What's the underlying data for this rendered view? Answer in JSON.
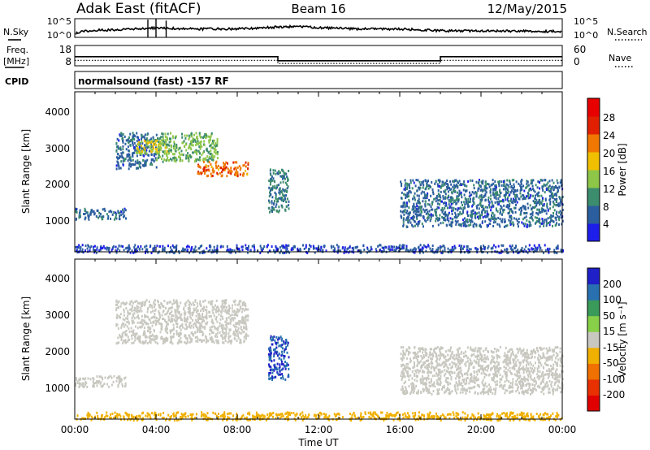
{
  "header": {
    "station": "Adak East (fitACF)",
    "beam": "Beam 16",
    "date": "12/May/2015"
  },
  "left_labels": {
    "nsky": "N.Sky",
    "freq": "Freq.",
    "freq_unit": "[MHz]",
    "cpid": "CPID"
  },
  "right_labels": {
    "nsearch": "N.Search",
    "nave": "Nave"
  },
  "program": "normalsound (fast) -157 RF",
  "time_axis": {
    "label": "Time UT",
    "ticks": [
      "00:00",
      "04:00",
      "08:00",
      "12:00",
      "16:00",
      "20:00",
      "00:00"
    ]
  },
  "range_axis": {
    "label": "Slant Range [km]",
    "ticks": [
      "1000",
      "2000",
      "3000",
      "4000"
    ]
  },
  "power_scale": {
    "label": "Power [dB]",
    "ticks": [
      "4",
      "8",
      "12",
      "16",
      "20",
      "24",
      "28"
    ],
    "colors": [
      "#1e1eea",
      "#2b5e9e",
      "#3c8c6e",
      "#8ec648",
      "#f0c000",
      "#f07800",
      "#e02000",
      "#e80000"
    ]
  },
  "velocity_scale": {
    "label": "Velocity [m s⁻¹]",
    "ticks": [
      "200",
      "100",
      "50",
      "15",
      "-15",
      "-50",
      "-100",
      "-200"
    ],
    "colors": [
      "#2020c8",
      "#2870b0",
      "#3a9a5a",
      "#88d048",
      "#c8c8c0",
      "#f0b000",
      "#f07000",
      "#e83000",
      "#e00000"
    ]
  },
  "chart_data": [
    {
      "type": "line",
      "name": "noise-panel",
      "x_label": "Time UT",
      "left_axis": {
        "ticks": [
          "10^5",
          "10^0"
        ]
      },
      "right_axis": {
        "ticks": [
          "10^5",
          "10^0"
        ]
      },
      "series": [
        {
          "name": "N.Sky",
          "hours": [
            0,
            0.5,
            3,
            4,
            6,
            8,
            10,
            11,
            12,
            14,
            16,
            18,
            20,
            22,
            24
          ],
          "value_frac": [
            0.2,
            0.35,
            0.45,
            0.5,
            0.45,
            0.45,
            0.55,
            0.58,
            0.52,
            0.45,
            0.45,
            0.35,
            0.35,
            0.33,
            0.32
          ]
        }
      ]
    },
    {
      "type": "line",
      "name": "frequency-panel",
      "left_axis": {
        "ticks": [
          "18",
          "8"
        ]
      },
      "right_axis": {
        "ticks": [
          "60",
          "0"
        ]
      },
      "series": [
        {
          "name": "Freq",
          "hours": [
            0,
            10,
            10,
            18,
            18,
            24
          ],
          "mhz": [
            12.5,
            12.5,
            10.5,
            10.5,
            12.5,
            12.5
          ]
        },
        {
          "name": "Nave",
          "hours": [
            0,
            10,
            10,
            18,
            18,
            24
          ],
          "value": [
            16,
            16,
            7,
            7,
            16,
            16
          ]
        }
      ]
    },
    {
      "type": "heatmap",
      "name": "power",
      "x_label": "Time UT",
      "y_label": "Slant Range [km]",
      "x_range": [
        0,
        24
      ],
      "y_range": [
        180,
        4600
      ],
      "colorbar": {
        "label": "Power [dB]",
        "range": [
          0,
          32
        ]
      },
      "regions": [
        {
          "hours": [
            2,
            4
          ],
          "range_km": [
            2500,
            3500
          ],
          "level_db": 6
        },
        {
          "hours": [
            3,
            4.5
          ],
          "range_km": [
            2900,
            3300
          ],
          "level_db": 16
        },
        {
          "hours": [
            4,
            7
          ],
          "range_km": [
            2700,
            3500
          ],
          "level_db": 12
        },
        {
          "hours": [
            6,
            8.5
          ],
          "range_km": [
            2300,
            2700
          ],
          "level_db": 22
        },
        {
          "hours": [
            0,
            2.5
          ],
          "range_km": [
            1100,
            1400
          ],
          "level_db": 6
        },
        {
          "hours": [
            9.5,
            10.5
          ],
          "range_km": [
            1300,
            2500
          ],
          "level_db": 8
        },
        {
          "hours": [
            16,
            24
          ],
          "range_km": [
            900,
            2200
          ],
          "level_db": 6
        },
        {
          "hours": [
            0,
            24
          ],
          "range_km": [
            180,
            400
          ],
          "level_db": 4
        }
      ]
    },
    {
      "type": "heatmap",
      "name": "velocity",
      "x_label": "Time UT",
      "y_label": "Slant Range [km]",
      "x_range": [
        0,
        24
      ],
      "y_range": [
        180,
        4600
      ],
      "colorbar": {
        "label": "Velocity [m s⁻¹]",
        "range": [
          -250,
          250
        ]
      },
      "regions": [
        {
          "hours": [
            2,
            8.5
          ],
          "range_km": [
            2300,
            3500
          ],
          "velocity": 0
        },
        {
          "hours": [
            0,
            2.5
          ],
          "range_km": [
            1100,
            1400
          ],
          "velocity": 0
        },
        {
          "hours": [
            9.5,
            10.5
          ],
          "range_km": [
            1300,
            2500
          ],
          "velocity": 200
        },
        {
          "hours": [
            16,
            24
          ],
          "range_km": [
            900,
            2200
          ],
          "velocity": 0
        },
        {
          "hours": [
            0,
            24
          ],
          "range_km": [
            180,
            400
          ],
          "velocity": -30
        }
      ]
    }
  ]
}
